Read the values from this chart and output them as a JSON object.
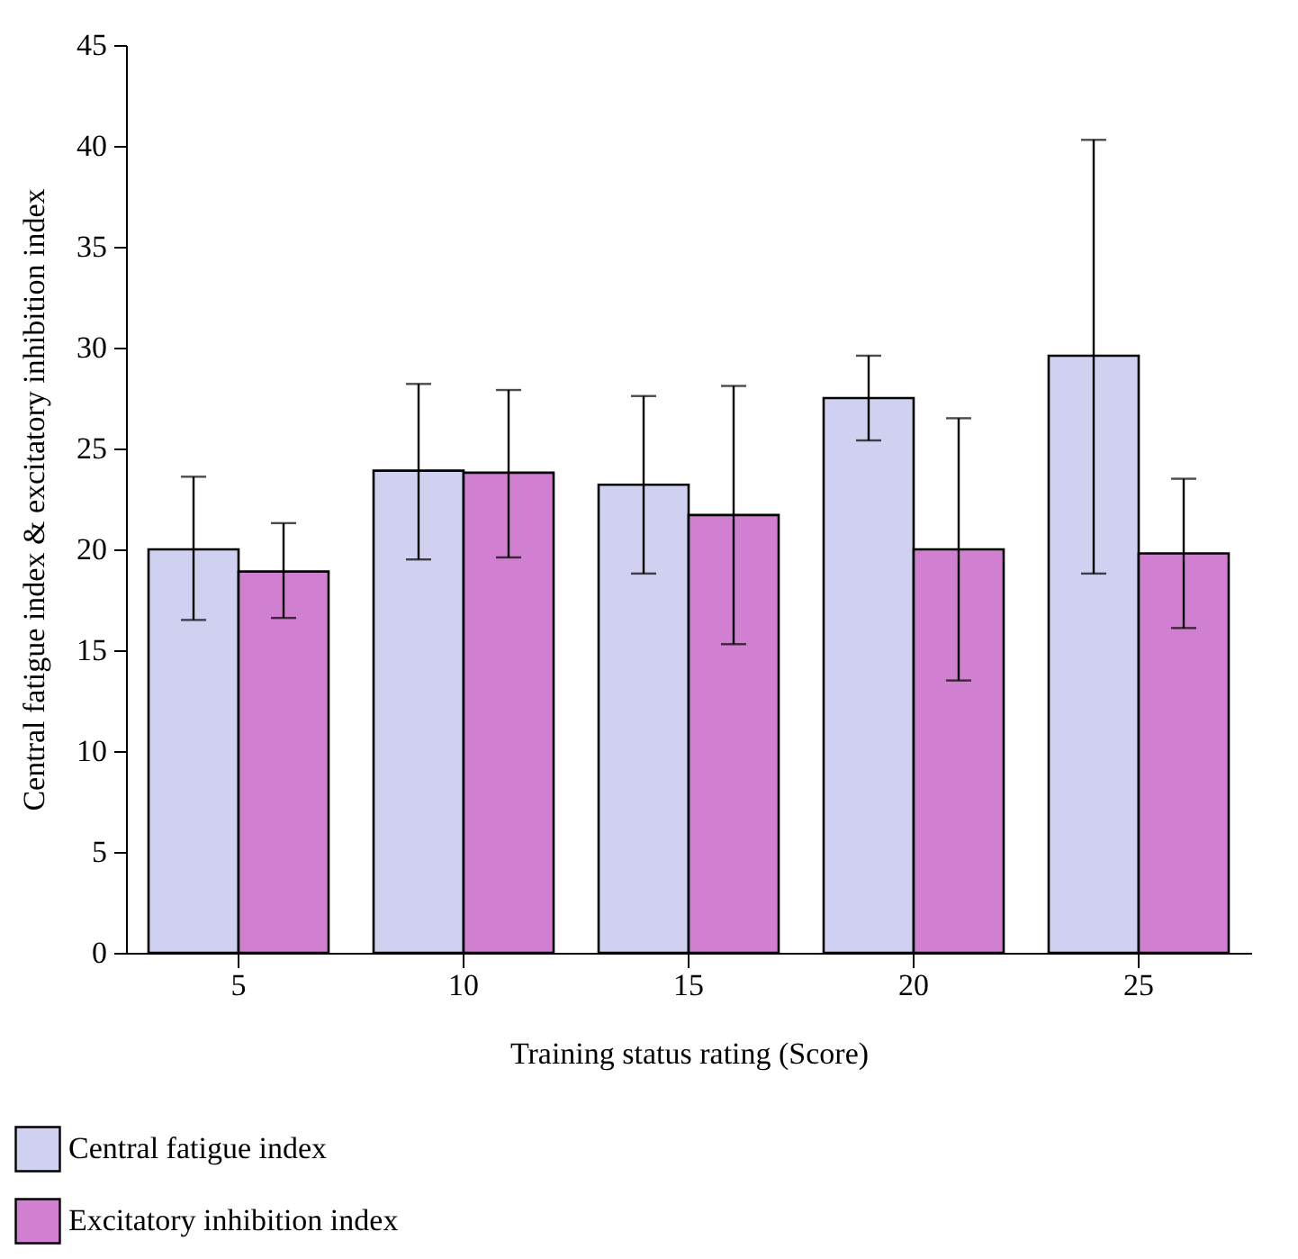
{
  "chart_data": {
    "type": "bar",
    "xlabel": "Training status rating (Score)",
    "ylabel": "Central fatigue index & excitatory inhibition index",
    "categories": [
      "5",
      "10",
      "15",
      "20",
      "25"
    ],
    "series": [
      {
        "name": "Central fatigue index",
        "color": "#d0d0f0",
        "values": [
          20.0,
          23.9,
          23.2,
          27.5,
          29.6
        ],
        "errors": [
          [
            16.5,
            23.6
          ],
          [
            19.5,
            28.2
          ],
          [
            18.8,
            27.6
          ],
          [
            25.4,
            29.6
          ],
          [
            18.8,
            40.3
          ]
        ]
      },
      {
        "name": "Excitatory inhibition index",
        "color": "#d17fd1",
        "values": [
          18.9,
          23.8,
          21.7,
          20.0,
          19.8
        ],
        "errors": [
          [
            16.6,
            21.3
          ],
          [
            19.6,
            27.9
          ],
          [
            15.3,
            28.1
          ],
          [
            13.5,
            26.5
          ],
          [
            16.1,
            23.5
          ]
        ]
      }
    ],
    "ylim": [
      0,
      45
    ],
    "yticks": [
      0,
      5,
      10,
      15,
      20,
      25,
      30,
      35,
      40,
      45
    ],
    "grid": false,
    "legend": "bottom left"
  }
}
